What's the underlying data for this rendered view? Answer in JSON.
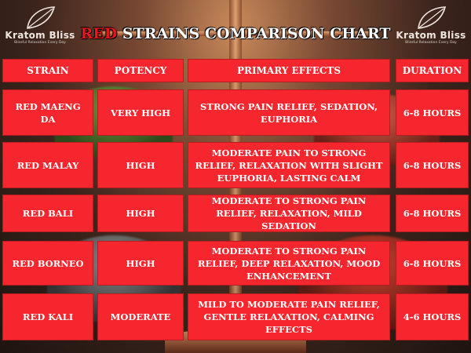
{
  "title": {
    "part1": "RED",
    "part2": "STRAINS COMPARISON CHART"
  },
  "logo": {
    "brand": "Kratom Bliss",
    "tagline": "Blissful Relaxation Every Day"
  },
  "colors": {
    "cell": "#f5262d",
    "title_red": "#e8161b",
    "text": "#ffffff"
  },
  "columns": [
    "STRAIN",
    "POTENCY",
    "PRIMARY EFFECTS",
    "DURATION"
  ],
  "rows": [
    {
      "strain": "RED MAENG DA",
      "potency": "VERY HIGH",
      "effects": "STRONG PAIN RELIEF, SEDATION, EUPHORIA",
      "duration": "6-8 HOURS"
    },
    {
      "strain": "RED MALAY",
      "potency": "HIGH",
      "effects": "MODERATE PAIN TO STRONG RELIEF, RELAXATION WITH SLIGHT EUPHORIA, LASTING CALM",
      "duration": "6-8 HOURS"
    },
    {
      "strain": "RED BALI",
      "potency": "HIGH",
      "effects": "MODERATE TO STRONG PAIN RELIEF, RELAXATION, MILD SEDATION",
      "duration": "6-8 HOURS"
    },
    {
      "strain": "RED BORNEO",
      "potency": "HIGH",
      "effects": "MODERATE TO STRONG PAIN RELIEF, DEEP RELAXATION, MOOD ENHANCEMENT",
      "duration": "6-8 HOURS"
    },
    {
      "strain": "RED KALI",
      "potency": "MODERATE",
      "effects": "MILD TO MODERATE PAIN RELIEF, GENTLE RELAXATION, CALMING EFFECTS",
      "duration": "4-6 HOURS"
    }
  ]
}
